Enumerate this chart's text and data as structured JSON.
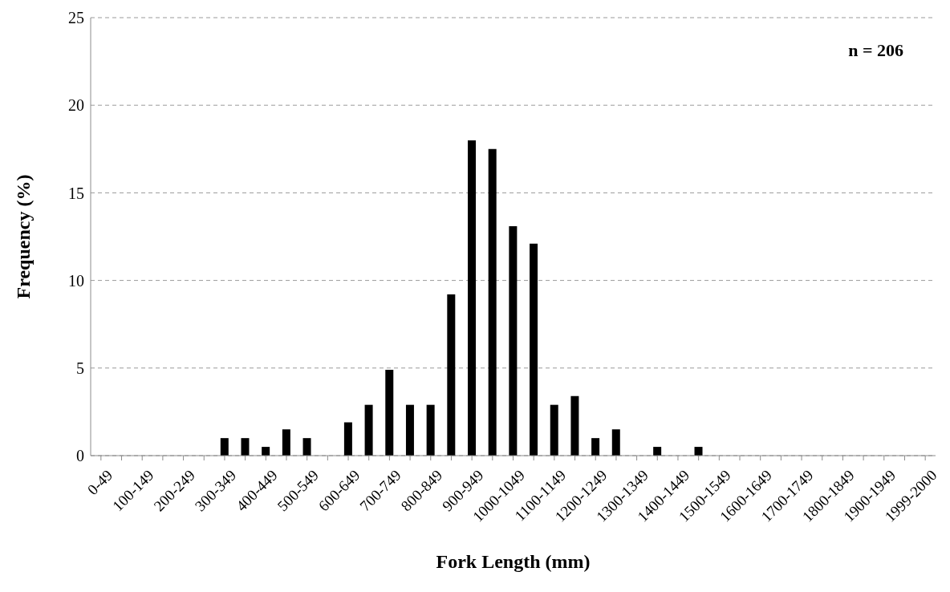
{
  "chart_data": {
    "type": "bar",
    "xlabel": "Fork Length (mm)",
    "ylabel": "Frequency (%)",
    "annotations": [
      "n = 206"
    ],
    "categories": [
      "0-49",
      null,
      "100-149",
      null,
      "200-249",
      null,
      "300-349",
      null,
      "400-449",
      null,
      "500-549",
      null,
      "600-649",
      null,
      "700-749",
      null,
      "800-849",
      null,
      "900-949",
      null,
      "1000-1049",
      null,
      "1100-1149",
      null,
      "1200-1249",
      null,
      "1300-1349",
      null,
      "1400-1449",
      null,
      "1500-1549",
      null,
      "1600-1649",
      null,
      "1700-1749",
      null,
      "1800-1849",
      null,
      "1900-1949",
      null,
      "1999-2000"
    ],
    "values": [
      0,
      0,
      0,
      0,
      0,
      0,
      1.0,
      1.0,
      0.5,
      1.5,
      1.0,
      0,
      1.9,
      2.9,
      4.9,
      2.9,
      2.9,
      9.2,
      18.0,
      17.5,
      13.1,
      12.1,
      2.9,
      3.4,
      1.0,
      1.5,
      0,
      0.5,
      0,
      0.5,
      0,
      0,
      0,
      0,
      0,
      0,
      0,
      0,
      0,
      0,
      0
    ],
    "color": "#000000",
    "ylim": [
      0,
      25
    ],
    "yticks": [
      0,
      5,
      10,
      15,
      20,
      25
    ],
    "grid": "y"
  }
}
